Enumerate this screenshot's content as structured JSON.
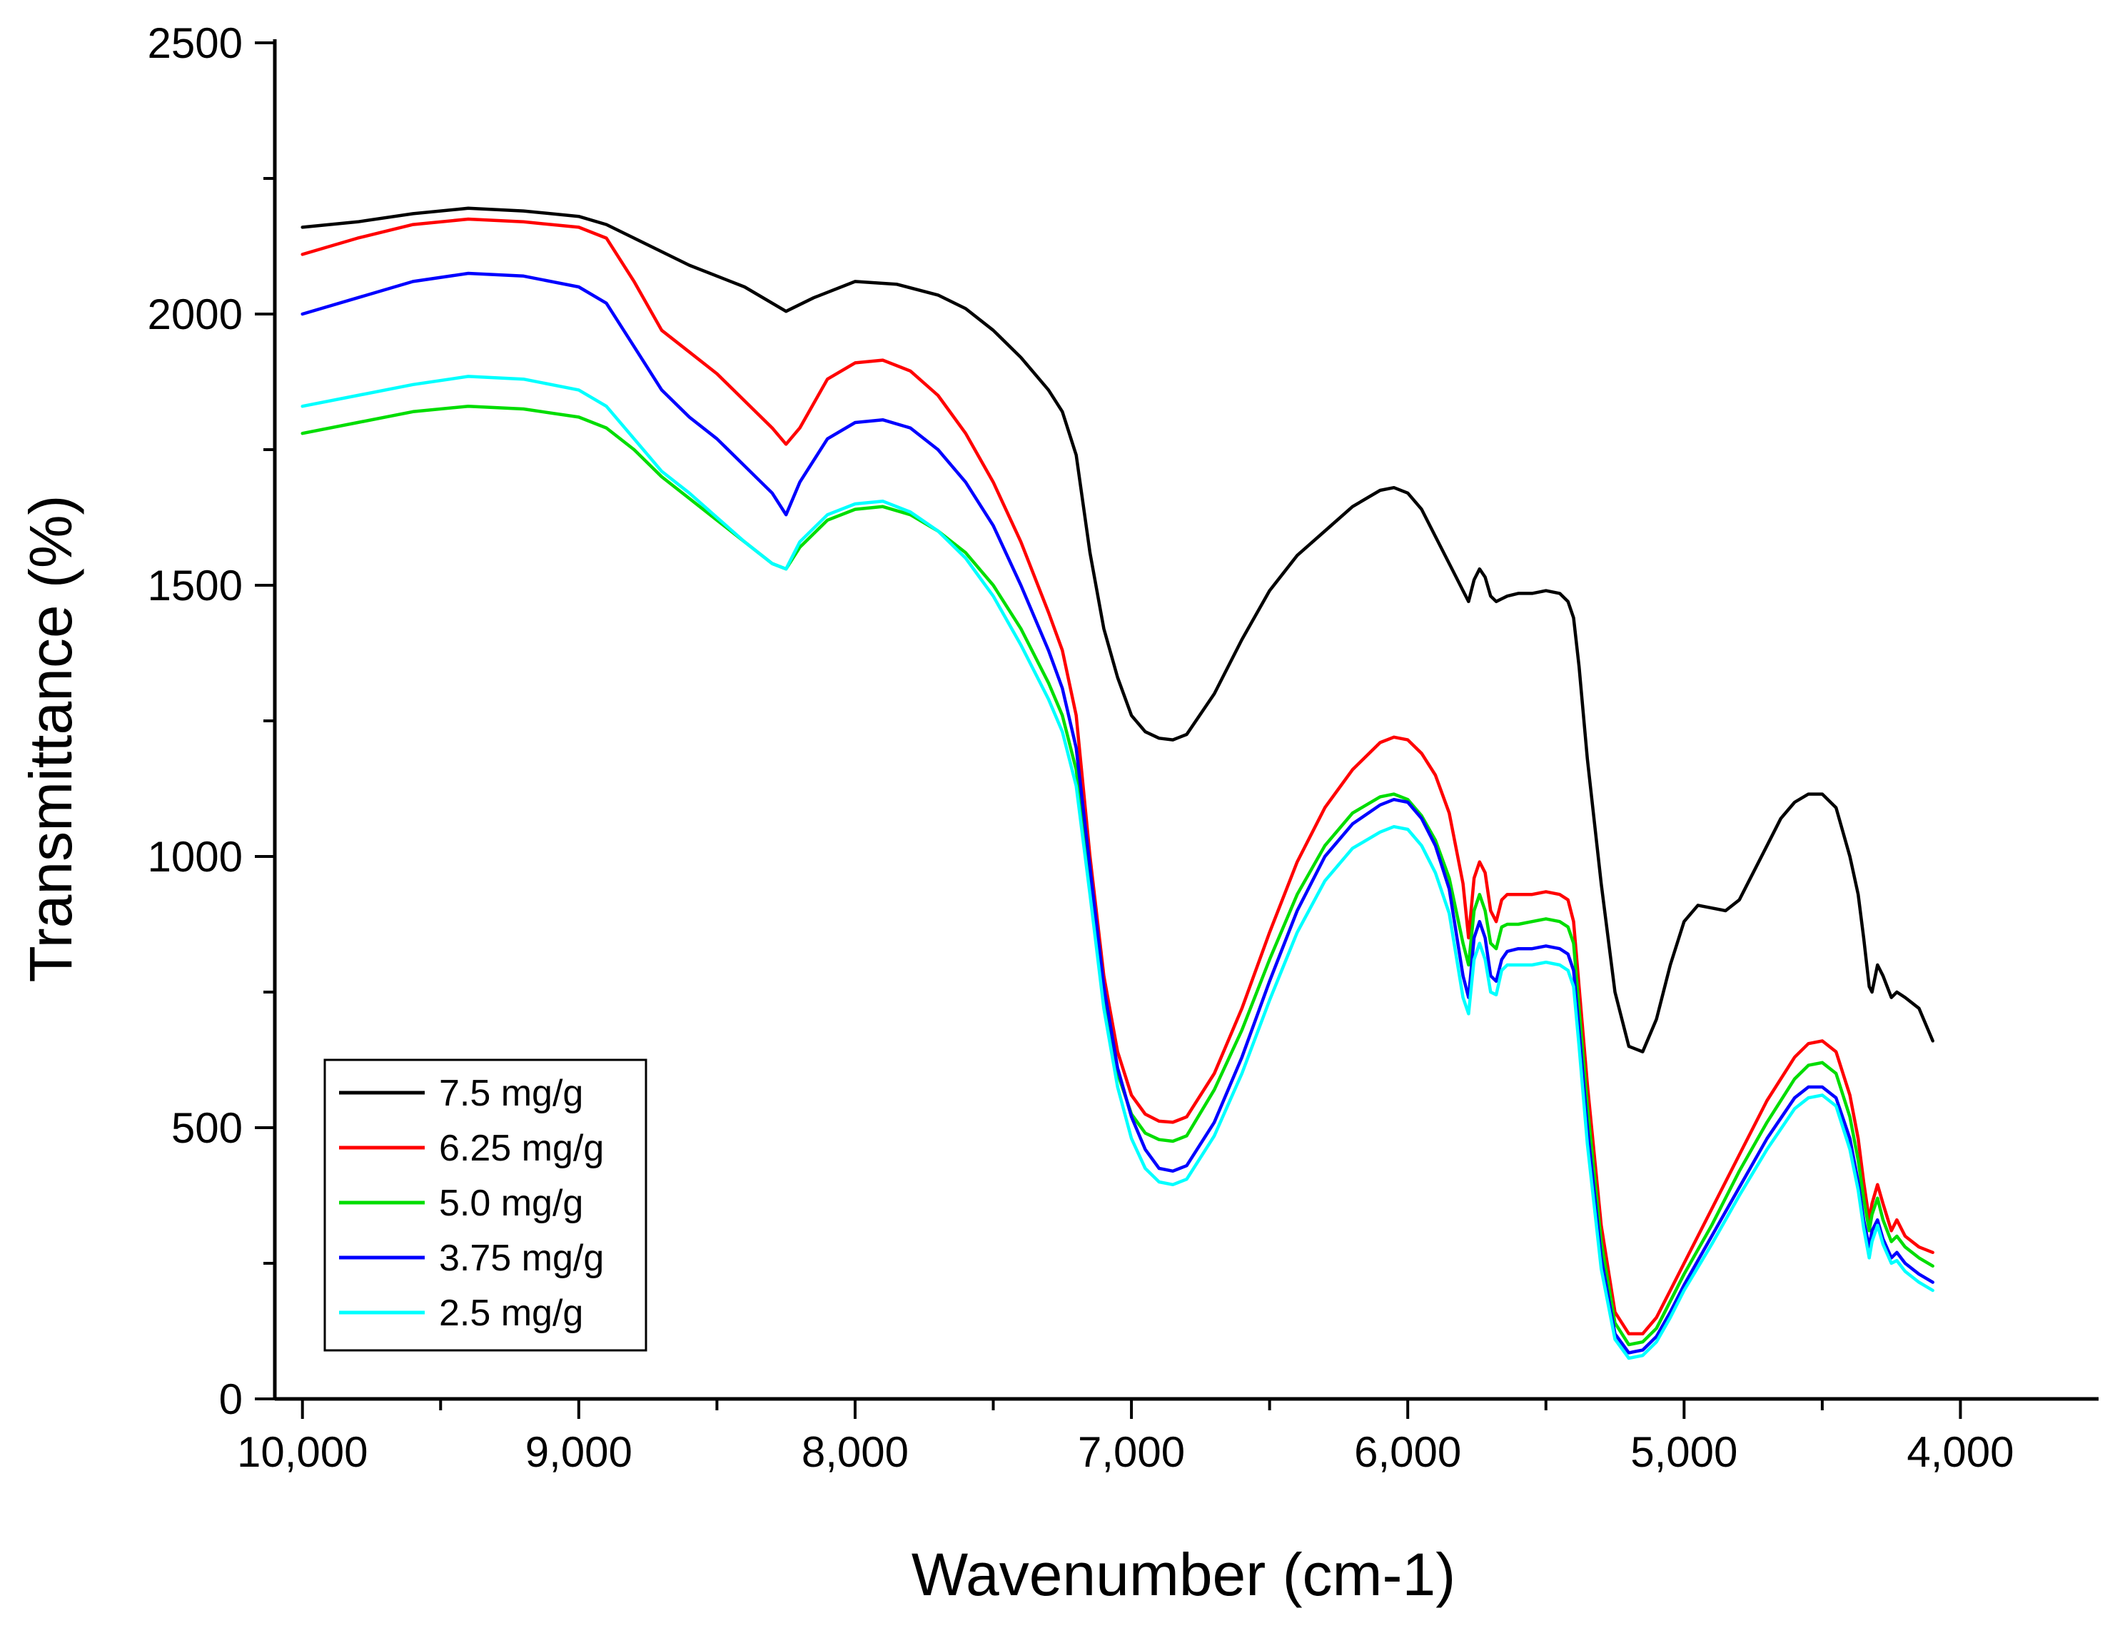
{
  "chart_data": {
    "type": "line",
    "title": "",
    "xlabel": "Wavenumber (cm-1)",
    "ylabel": "Transmittance (%)",
    "xlim": [
      10100,
      3500
    ],
    "ylim": [
      0,
      2500
    ],
    "x_reversed": true,
    "x_ticks": [
      10000,
      9000,
      8000,
      7000,
      6000,
      5000,
      4000
    ],
    "x_tick_labels": [
      "10,000",
      "9,000",
      "8,000",
      "7,000",
      "6,000",
      "5,000",
      "4,000"
    ],
    "y_ticks": [
      0,
      500,
      1000,
      1500,
      2000,
      2500
    ],
    "y_tick_labels": [
      "0",
      "500",
      "1000",
      "1500",
      "2000",
      "2500"
    ],
    "legend_position": "bottom-left",
    "series": [
      {
        "name": "7.5 mg/g",
        "color": "#000000",
        "x": [
          10000,
          9800,
          9600,
          9400,
          9200,
          9000,
          8900,
          8800,
          8600,
          8400,
          8250,
          8150,
          8000,
          7850,
          7700,
          7600,
          7500,
          7400,
          7300,
          7250,
          7200,
          7150,
          7100,
          7050,
          7000,
          6950,
          6900,
          6850,
          6800,
          6700,
          6600,
          6500,
          6400,
          6300,
          6200,
          6100,
          6050,
          6000,
          5950,
          5900,
          5850,
          5800,
          5780,
          5760,
          5740,
          5720,
          5700,
          5680,
          5660,
          5640,
          5600,
          5550,
          5500,
          5450,
          5420,
          5400,
          5380,
          5350,
          5300,
          5250,
          5200,
          5150,
          5100,
          5050,
          5000,
          4950,
          4900,
          4850,
          4800,
          4750,
          4700,
          4650,
          4600,
          4550,
          4500,
          4450,
          4400,
          4370,
          4350,
          4330,
          4320,
          4300,
          4280,
          4250,
          4230,
          4200,
          4150,
          4100
        ],
        "y": [
          2160,
          2170,
          2185,
          2195,
          2190,
          2180,
          2165,
          2140,
          2090,
          2050,
          2005,
          2030,
          2060,
          2055,
          2035,
          2010,
          1970,
          1920,
          1860,
          1820,
          1740,
          1560,
          1420,
          1330,
          1260,
          1230,
          1218,
          1215,
          1225,
          1300,
          1400,
          1490,
          1555,
          1600,
          1645,
          1675,
          1680,
          1670,
          1640,
          1590,
          1540,
          1490,
          1470,
          1510,
          1530,
          1515,
          1480,
          1470,
          1475,
          1480,
          1485,
          1485,
          1490,
          1485,
          1470,
          1440,
          1350,
          1180,
          950,
          750,
          650,
          640,
          700,
          800,
          880,
          910,
          905,
          900,
          920,
          970,
          1020,
          1070,
          1100,
          1115,
          1115,
          1090,
          1000,
          930,
          850,
          760,
          750,
          800,
          780,
          740,
          750,
          740,
          720,
          660
        ]
      },
      {
        "name": "6.25 mg/g",
        "color": "#ff0000",
        "x": [
          10000,
          9800,
          9600,
          9400,
          9200,
          9000,
          8900,
          8800,
          8700,
          8600,
          8500,
          8400,
          8300,
          8250,
          8200,
          8100,
          8000,
          7900,
          7800,
          7700,
          7600,
          7500,
          7400,
          7300,
          7250,
          7200,
          7150,
          7100,
          7050,
          7000,
          6950,
          6900,
          6850,
          6800,
          6700,
          6600,
          6500,
          6400,
          6300,
          6200,
          6100,
          6050,
          6000,
          5950,
          5900,
          5850,
          5800,
          5780,
          5760,
          5740,
          5720,
          5700,
          5680,
          5660,
          5640,
          5600,
          5550,
          5500,
          5450,
          5420,
          5400,
          5380,
          5350,
          5300,
          5250,
          5200,
          5150,
          5100,
          5050,
          5000,
          4900,
          4800,
          4700,
          4600,
          4550,
          4500,
          4450,
          4400,
          4370,
          4350,
          4330,
          4320,
          4300,
          4280,
          4250,
          4230,
          4200,
          4150,
          4100
        ],
        "y": [
          2110,
          2140,
          2165,
          2175,
          2170,
          2160,
          2140,
          2060,
          1970,
          1930,
          1890,
          1840,
          1790,
          1760,
          1790,
          1880,
          1910,
          1915,
          1895,
          1850,
          1780,
          1690,
          1580,
          1450,
          1380,
          1260,
          1000,
          780,
          640,
          560,
          525,
          512,
          510,
          520,
          600,
          720,
          860,
          990,
          1090,
          1160,
          1210,
          1220,
          1215,
          1190,
          1150,
          1080,
          950,
          850,
          960,
          990,
          970,
          900,
          880,
          920,
          930,
          930,
          930,
          935,
          930,
          920,
          880,
          760,
          580,
          320,
          160,
          120,
          120,
          150,
          200,
          250,
          350,
          450,
          550,
          630,
          655,
          660,
          640,
          560,
          480,
          400,
          330,
          360,
          395,
          360,
          310,
          330,
          300,
          280,
          270
        ]
      },
      {
        "name": "5.0 mg/g",
        "color": "#00dd00",
        "x": [
          10000,
          9800,
          9600,
          9400,
          9200,
          9000,
          8900,
          8800,
          8700,
          8600,
          8500,
          8400,
          8300,
          8250,
          8200,
          8100,
          8000,
          7900,
          7800,
          7700,
          7600,
          7500,
          7400,
          7300,
          7250,
          7200,
          7150,
          7100,
          7050,
          7000,
          6950,
          6900,
          6850,
          6800,
          6700,
          6600,
          6500,
          6400,
          6300,
          6200,
          6100,
          6050,
          6000,
          5950,
          5900,
          5850,
          5800,
          5780,
          5760,
          5740,
          5720,
          5700,
          5680,
          5660,
          5640,
          5600,
          5550,
          5500,
          5450,
          5420,
          5400,
          5380,
          5350,
          5300,
          5250,
          5200,
          5150,
          5100,
          5050,
          5000,
          4900,
          4800,
          4700,
          4600,
          4550,
          4500,
          4450,
          4400,
          4370,
          4350,
          4330,
          4320,
          4300,
          4280,
          4250,
          4230,
          4200,
          4150,
          4100
        ],
        "y": [
          1780,
          1800,
          1820,
          1830,
          1825,
          1810,
          1790,
          1750,
          1700,
          1660,
          1620,
          1580,
          1540,
          1530,
          1570,
          1620,
          1640,
          1645,
          1630,
          1600,
          1560,
          1500,
          1420,
          1320,
          1260,
          1160,
          950,
          740,
          600,
          525,
          490,
          478,
          475,
          485,
          570,
          680,
          810,
          930,
          1020,
          1080,
          1110,
          1115,
          1105,
          1075,
          1030,
          960,
          840,
          800,
          900,
          930,
          900,
          840,
          830,
          870,
          875,
          875,
          880,
          885,
          880,
          870,
          840,
          720,
          540,
          290,
          140,
          100,
          105,
          130,
          180,
          230,
          320,
          420,
          510,
          590,
          615,
          620,
          600,
          520,
          440,
          370,
          310,
          340,
          370,
          330,
          290,
          300,
          280,
          260,
          245
        ]
      },
      {
        "name": "3.75 mg/g",
        "color": "#0000ff",
        "x": [
          10000,
          9800,
          9600,
          9400,
          9200,
          9000,
          8900,
          8800,
          8700,
          8600,
          8500,
          8400,
          8300,
          8250,
          8200,
          8100,
          8000,
          7900,
          7800,
          7700,
          7600,
          7500,
          7400,
          7300,
          7250,
          7200,
          7150,
          7100,
          7050,
          7000,
          6950,
          6900,
          6850,
          6800,
          6700,
          6600,
          6500,
          6400,
          6300,
          6200,
          6100,
          6050,
          6000,
          5950,
          5900,
          5850,
          5800,
          5780,
          5760,
          5740,
          5720,
          5700,
          5680,
          5660,
          5640,
          5600,
          5550,
          5500,
          5450,
          5420,
          5400,
          5380,
          5350,
          5300,
          5250,
          5200,
          5150,
          5100,
          5050,
          5000,
          4900,
          4800,
          4700,
          4600,
          4550,
          4500,
          4450,
          4400,
          4370,
          4350,
          4330,
          4320,
          4300,
          4280,
          4250,
          4230,
          4200,
          4150,
          4100
        ],
        "y": [
          2000,
          2030,
          2060,
          2075,
          2070,
          2050,
          2020,
          1940,
          1860,
          1810,
          1770,
          1720,
          1670,
          1630,
          1690,
          1770,
          1800,
          1805,
          1790,
          1750,
          1690,
          1610,
          1500,
          1380,
          1310,
          1200,
          980,
          760,
          610,
          520,
          460,
          425,
          420,
          430,
          510,
          630,
          770,
          900,
          1000,
          1060,
          1095,
          1105,
          1100,
          1070,
          1020,
          940,
          780,
          740,
          850,
          880,
          850,
          780,
          770,
          810,
          825,
          830,
          830,
          835,
          830,
          820,
          790,
          680,
          500,
          260,
          120,
          85,
          90,
          115,
          160,
          210,
          300,
          390,
          480,
          555,
          575,
          575,
          555,
          480,
          400,
          330,
          280,
          310,
          330,
          295,
          260,
          270,
          250,
          230,
          215
        ]
      },
      {
        "name": "2.5 mg/g",
        "color": "#00ffff",
        "x": [
          10000,
          9800,
          9600,
          9400,
          9200,
          9000,
          8900,
          8800,
          8700,
          8600,
          8500,
          8400,
          8300,
          8250,
          8200,
          8100,
          8000,
          7900,
          7800,
          7700,
          7600,
          7500,
          7400,
          7300,
          7250,
          7200,
          7150,
          7100,
          7050,
          7000,
          6950,
          6900,
          6850,
          6800,
          6700,
          6600,
          6500,
          6400,
          6300,
          6200,
          6100,
          6050,
          6000,
          5950,
          5900,
          5850,
          5800,
          5780,
          5760,
          5740,
          5720,
          5700,
          5680,
          5660,
          5640,
          5600,
          5550,
          5500,
          5450,
          5420,
          5400,
          5380,
          5350,
          5300,
          5250,
          5200,
          5150,
          5100,
          5050,
          5000,
          4900,
          4800,
          4700,
          4600,
          4550,
          4500,
          4450,
          4400,
          4370,
          4350,
          4330,
          4320,
          4300,
          4280,
          4250,
          4230,
          4200,
          4150,
          4100
        ],
        "y": [
          1830,
          1850,
          1870,
          1885,
          1880,
          1860,
          1830,
          1770,
          1710,
          1670,
          1625,
          1580,
          1540,
          1530,
          1580,
          1630,
          1650,
          1655,
          1635,
          1600,
          1550,
          1480,
          1390,
          1290,
          1230,
          1130,
          930,
          720,
          575,
          480,
          425,
          400,
          395,
          405,
          485,
          600,
          735,
          860,
          955,
          1015,
          1045,
          1055,
          1050,
          1020,
          970,
          895,
          740,
          710,
          810,
          840,
          810,
          750,
          745,
          790,
          800,
          800,
          800,
          805,
          800,
          790,
          760,
          650,
          470,
          240,
          110,
          75,
          80,
          105,
          150,
          200,
          285,
          375,
          460,
          535,
          555,
          560,
          540,
          460,
          385,
          315,
          260,
          290,
          320,
          285,
          250,
          255,
          235,
          215,
          200
        ]
      }
    ]
  }
}
